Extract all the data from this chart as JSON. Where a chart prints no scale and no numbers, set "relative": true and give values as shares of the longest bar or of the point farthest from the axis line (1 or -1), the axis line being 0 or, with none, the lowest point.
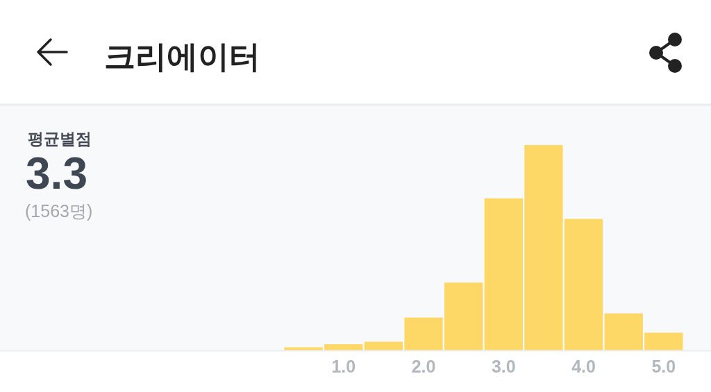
{
  "chart_data": {
    "type": "bar",
    "title": "크리에이터",
    "subtitle": "평균별점",
    "annotations": [
      "3.3",
      "(1563명)"
    ],
    "categories": [
      null,
      "1.0",
      null,
      "2.0",
      null,
      "3.0",
      null,
      "4.0",
      null,
      "5.0"
    ],
    "values": [
      0.015,
      0.03,
      0.042,
      0.16,
      0.33,
      0.74,
      1,
      0.64,
      0.18,
      0.086
    ],
    "color": "#fed866",
    "relative": true
  }
}
